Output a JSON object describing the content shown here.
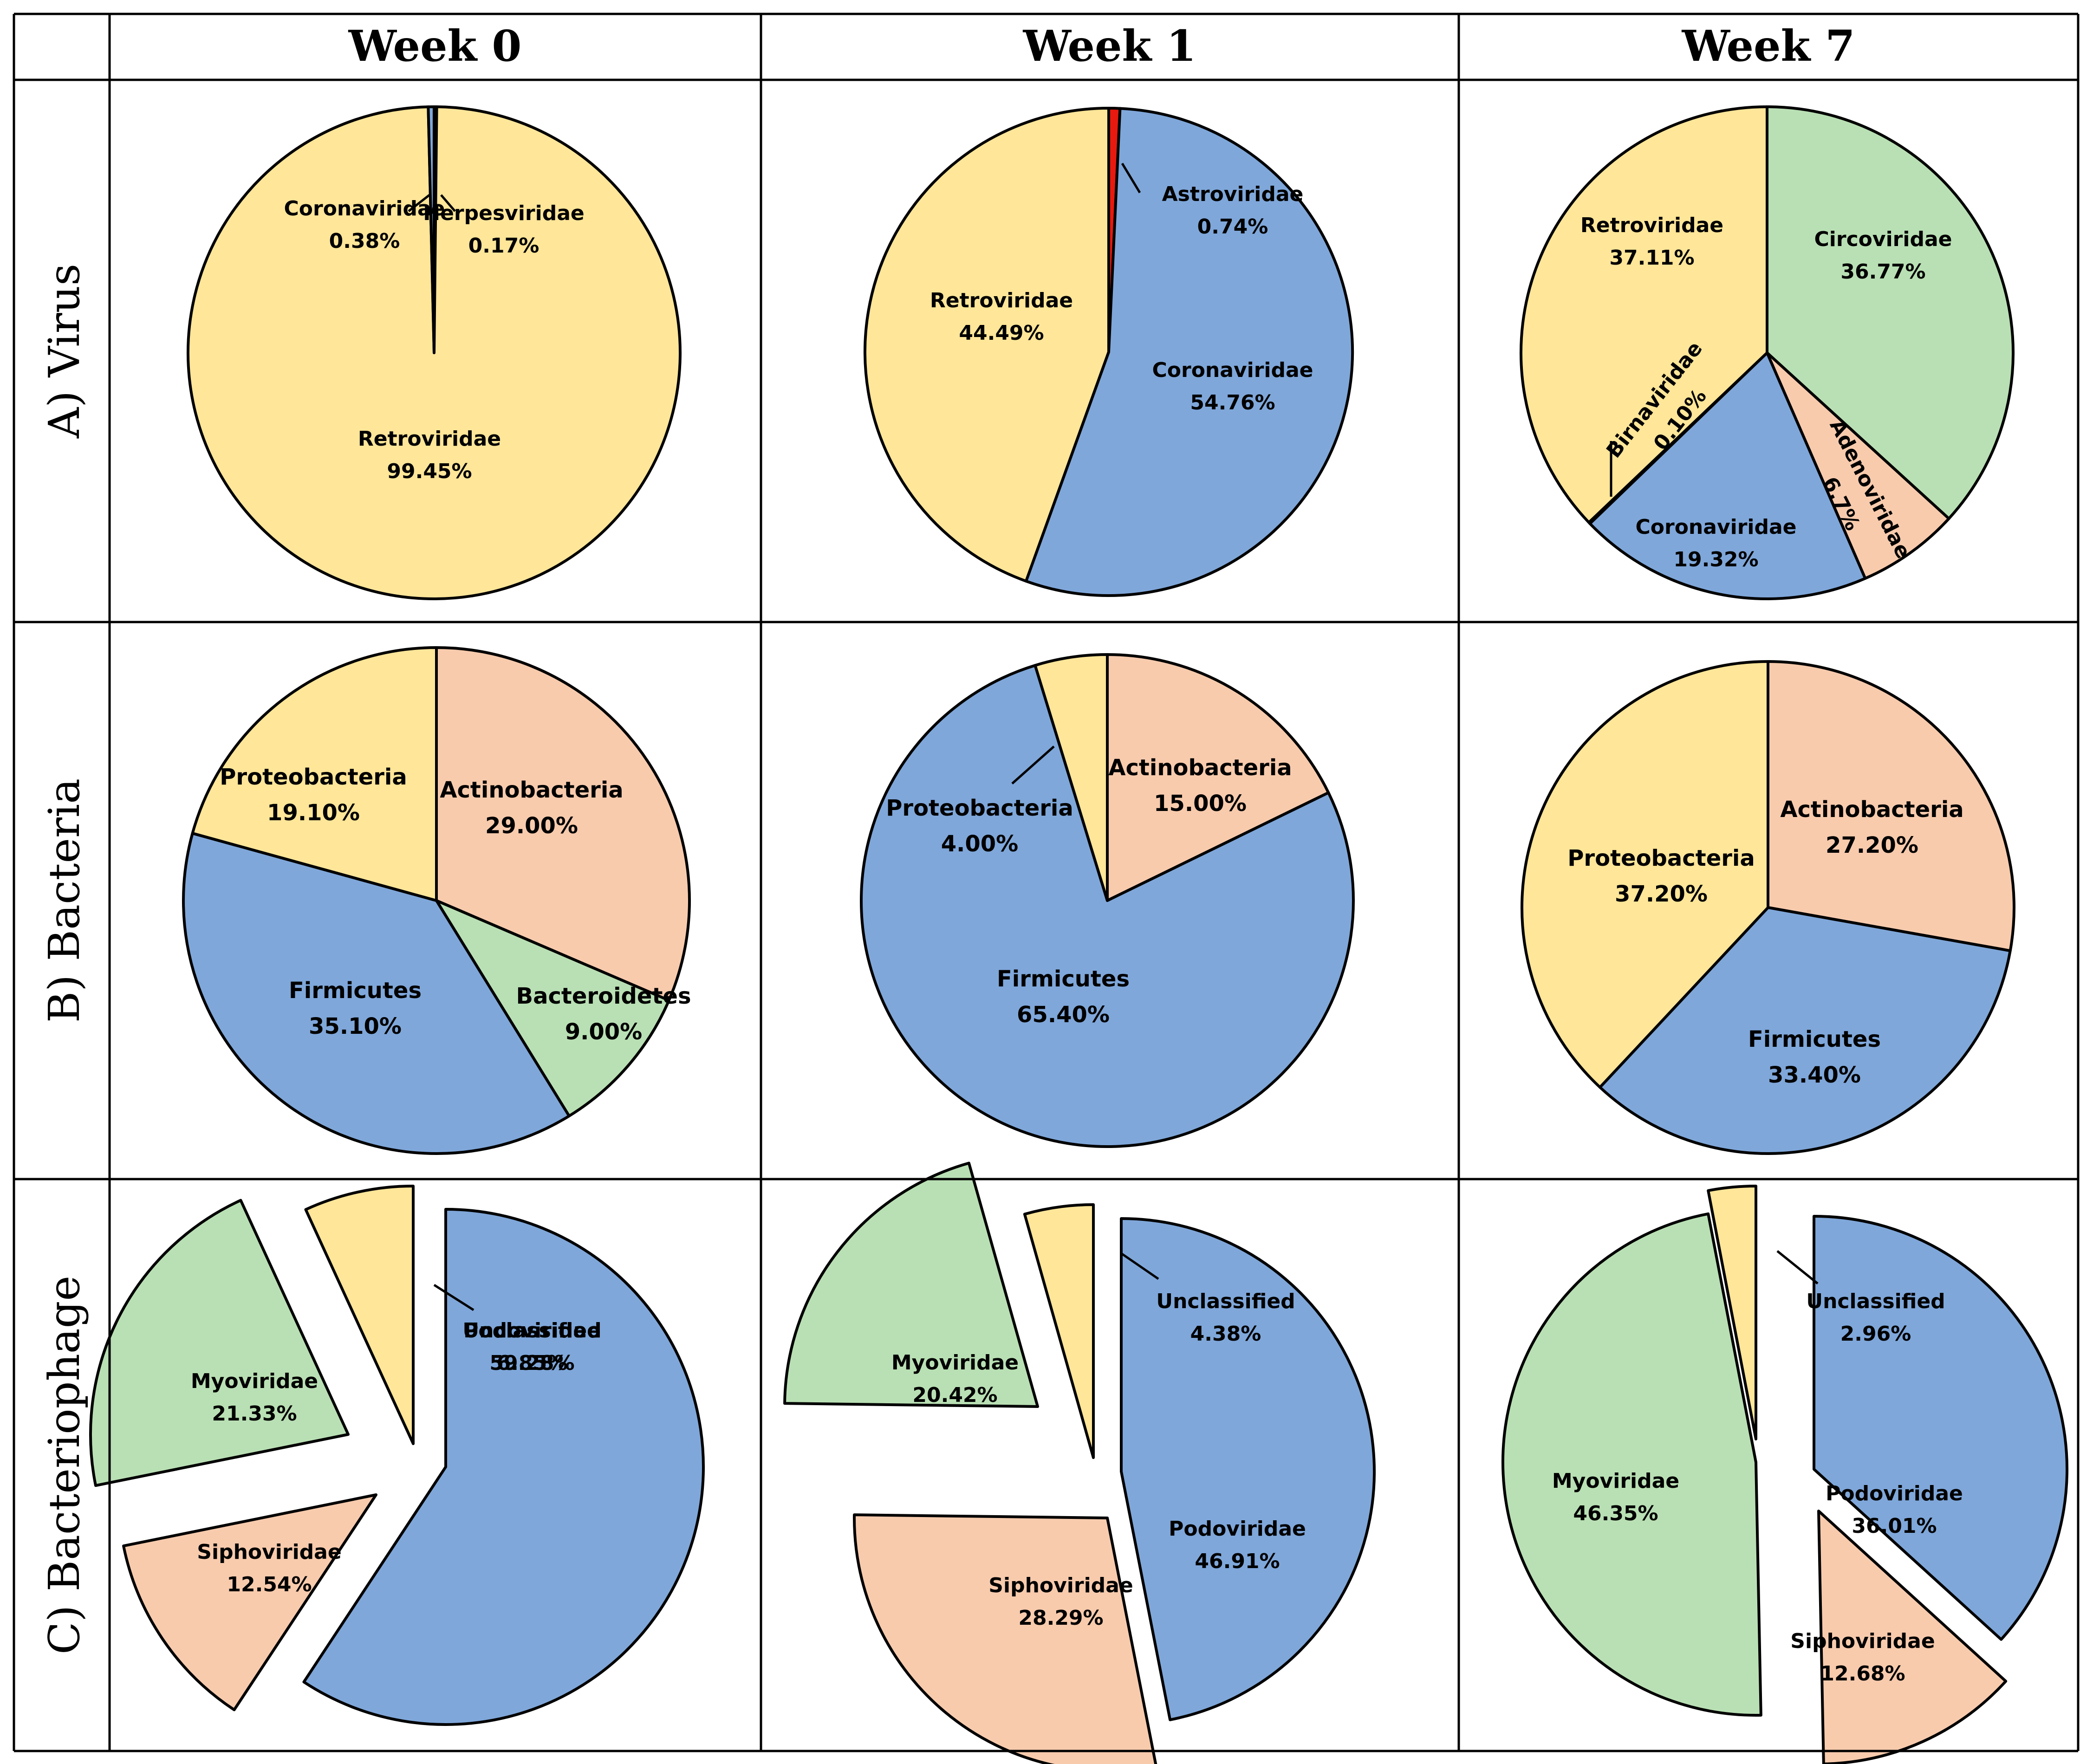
{
  "columns": [
    "Week 0",
    "Week 1",
    "Week 7"
  ],
  "rows": [
    "A) Virus",
    "B) Bacteria",
    "C) Bacteriophage"
  ],
  "colors": {
    "yellow": "#FFE699",
    "blue": "#7FA7DA",
    "salmon": "#F8CBAD",
    "green": "#B9E0B4",
    "red": "#E8190E",
    "lightblue": "#9DC3E6",
    "lightred": "#F4A6A6"
  },
  "chart_data": [
    {
      "type": "pie",
      "row": "A) Virus",
      "column": "Week 0",
      "slices": [
        {
          "name": "Herpesviridae",
          "value": 0.17,
          "label": "0.17%",
          "color": "lightred"
        },
        {
          "name": "Retroviridae",
          "value": 99.45,
          "label": "99.45%",
          "color": "yellow"
        },
        {
          "name": "Coronaviridae",
          "value": 0.38,
          "label": "0.38%",
          "color": "blue"
        }
      ]
    },
    {
      "type": "pie",
      "row": "A) Virus",
      "column": "Week 1",
      "slices": [
        {
          "name": "Astroviridae",
          "value": 0.74,
          "label": "0.74%",
          "color": "red"
        },
        {
          "name": "Coronaviridae",
          "value": 54.76,
          "label": "54.76%",
          "color": "blue"
        },
        {
          "name": "Retroviridae",
          "value": 44.49,
          "label": "44.49%",
          "color": "yellow"
        }
      ]
    },
    {
      "type": "pie",
      "row": "A) Virus",
      "column": "Week 7",
      "slices": [
        {
          "name": "Circoviridae",
          "value": 36.77,
          "label": "36.77%",
          "color": "green"
        },
        {
          "name": "Adenoviridae",
          "value": 6.7,
          "label": "6.7%",
          "color": "salmon"
        },
        {
          "name": "Coronaviridae",
          "value": 19.32,
          "label": "19.32%",
          "color": "blue"
        },
        {
          "name": "Birnaviridae",
          "value": 0.1,
          "label": "0.10%",
          "color": "yellow"
        },
        {
          "name": "Retroviridae",
          "value": 37.11,
          "label": "37.11%",
          "color": "yellow"
        }
      ]
    },
    {
      "type": "pie",
      "row": "B) Bacteria",
      "column": "Week 0",
      "slices": [
        {
          "name": "Actinobacteria",
          "value": 29.0,
          "label": "29.00%",
          "color": "salmon"
        },
        {
          "name": "Bacteroidetes",
          "value": 9.0,
          "label": "9.00%",
          "color": "green"
        },
        {
          "name": "Firmicutes",
          "value": 35.1,
          "label": "35.10%",
          "color": "blue"
        },
        {
          "name": "Proteobacteria",
          "value": 19.1,
          "label": "19.10%",
          "color": "yellow"
        }
      ]
    },
    {
      "type": "pie",
      "row": "B) Bacteria",
      "column": "Week 1",
      "slices": [
        {
          "name": "Actinobacteria",
          "value": 15.0,
          "label": "15.00%",
          "color": "salmon"
        },
        {
          "name": "Firmicutes",
          "value": 65.4,
          "label": "65.40%",
          "color": "blue"
        },
        {
          "name": "Proteobacteria",
          "value": 4.0,
          "label": "4.00%",
          "color": "yellow"
        }
      ]
    },
    {
      "type": "pie",
      "row": "B) Bacteria",
      "column": "Week 7",
      "slices": [
        {
          "name": "Actinobacteria",
          "value": 27.2,
          "label": "27.20%",
          "color": "salmon"
        },
        {
          "name": "Firmicutes",
          "value": 33.4,
          "label": "33.40%",
          "color": "blue"
        },
        {
          "name": "Proteobacteria",
          "value": 37.2,
          "label": "37.20%",
          "color": "yellow"
        }
      ]
    },
    {
      "type": "pie",
      "row": "C) Bacteriophage",
      "column": "Week 0",
      "exploded": true,
      "slices": [
        {
          "name": "Podoviridae",
          "value": 59.28,
          "label": "59.28%",
          "color": "blue"
        },
        {
          "name": "Siphoviridae",
          "value": 12.54,
          "label": "12.54%",
          "color": "salmon"
        },
        {
          "name": "Myoviridae",
          "value": 21.33,
          "label": "21.33%",
          "color": "green"
        },
        {
          "name": "Unclassified",
          "value": 6.85,
          "label": "6.85%",
          "color": "yellow"
        }
      ]
    },
    {
      "type": "pie",
      "row": "C) Bacteriophage",
      "column": "Week 1",
      "exploded": true,
      "slices": [
        {
          "name": "Podoviridae",
          "value": 46.91,
          "label": "46.91%",
          "color": "blue"
        },
        {
          "name": "Siphoviridae",
          "value": 28.29,
          "label": "28.29%",
          "color": "salmon"
        },
        {
          "name": "Myoviridae",
          "value": 20.42,
          "label": "20.42%",
          "color": "green"
        },
        {
          "name": "Unclassified",
          "value": 4.38,
          "label": "4.38%",
          "color": "yellow"
        }
      ]
    },
    {
      "type": "pie",
      "row": "C) Bacteriophage",
      "column": "Week 7",
      "exploded": true,
      "slices": [
        {
          "name": "Podoviridae",
          "value": 36.01,
          "label": "36.01%",
          "color": "blue"
        },
        {
          "name": "Siphoviridae",
          "value": 12.68,
          "label": "12.68%",
          "color": "salmon"
        },
        {
          "name": "Myoviridae",
          "value": 46.35,
          "label": "46.35%",
          "color": "green"
        },
        {
          "name": "Unclassified",
          "value": 2.96,
          "label": "2.96%",
          "color": "yellow"
        }
      ]
    }
  ]
}
